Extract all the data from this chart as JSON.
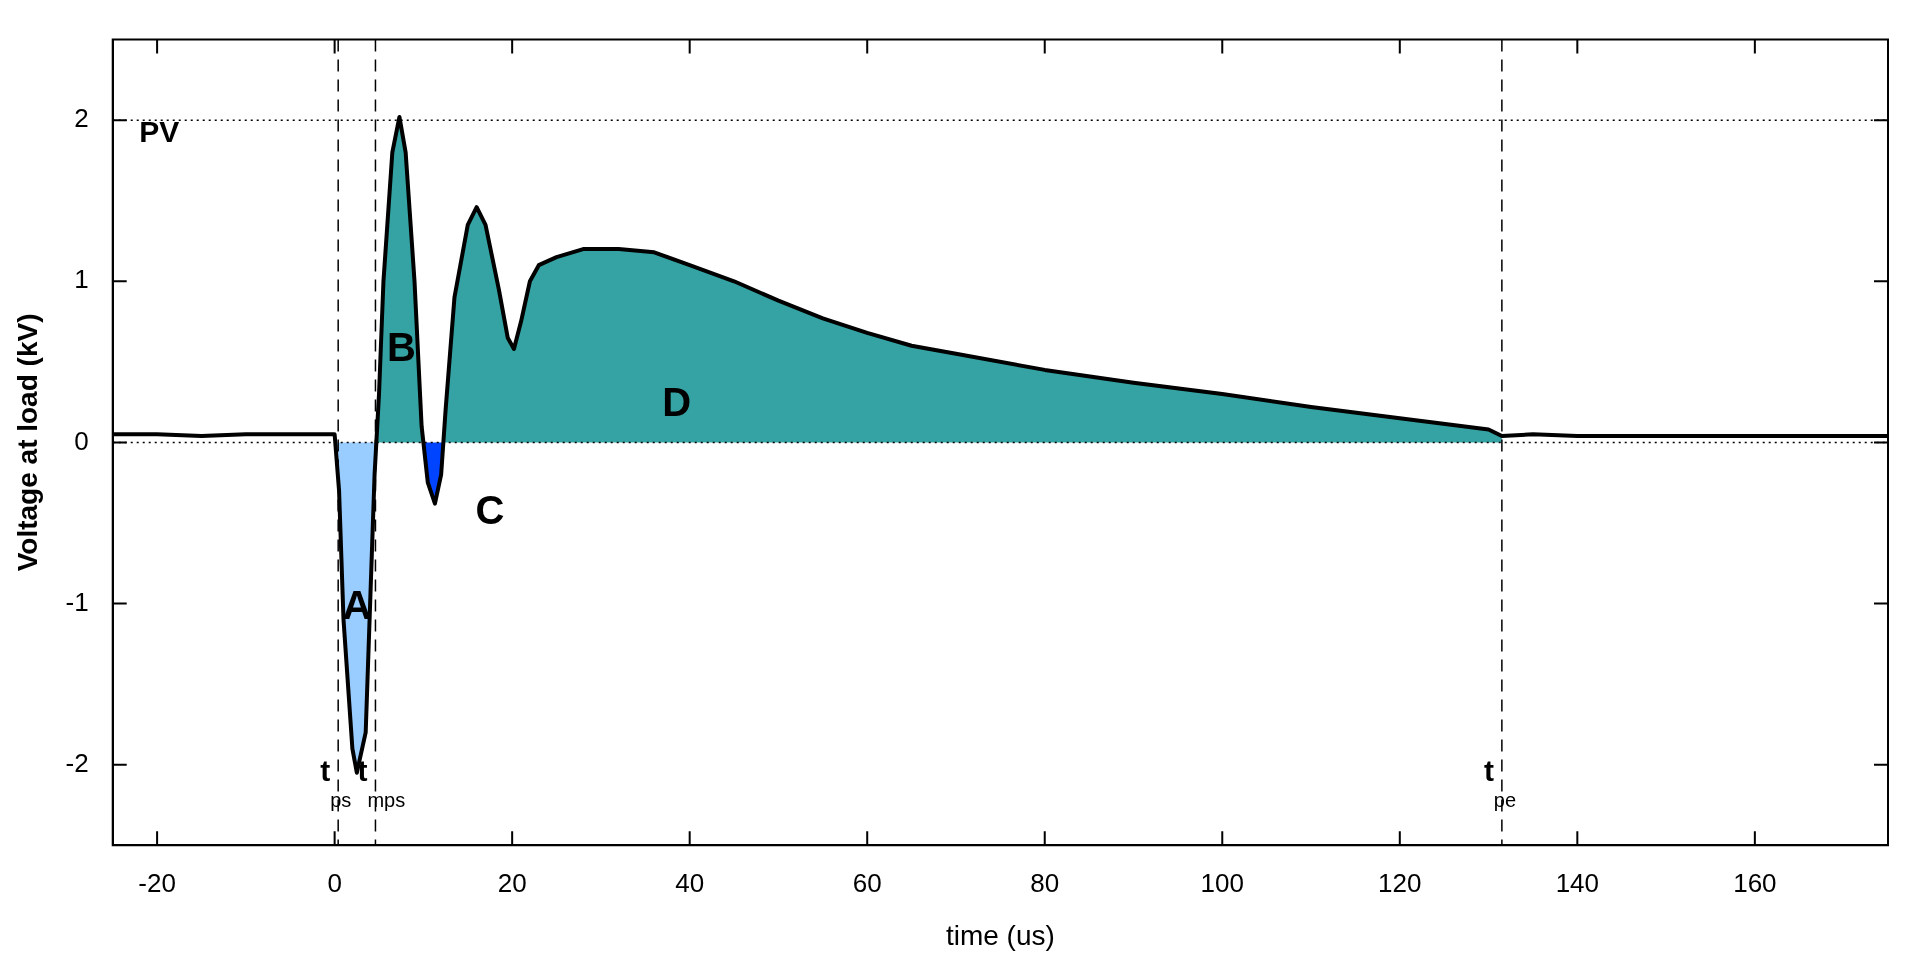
{
  "chart_data": {
    "type": "line",
    "xlabel": "time (us)",
    "ylabel": "Voltage at load (kV)",
    "xlim": [
      -25,
      175
    ],
    "ylim": [
      -2.5,
      2.5
    ],
    "xticks": [
      -20,
      0,
      20,
      40,
      60,
      80,
      100,
      120,
      140,
      160
    ],
    "yticks": [
      -2,
      -1,
      0,
      1,
      2
    ],
    "marker": "none",
    "series": [
      {
        "type": "line",
        "color": "#000000",
        "x": [
          -25,
          -20,
          -15,
          -10,
          -5,
          0,
          0.5,
          1,
          2,
          2.5,
          3.5,
          4,
          4.5,
          5,
          5.5,
          6.5,
          7.3,
          8,
          9,
          9.8,
          10.5,
          11.3,
          12,
          12.5,
          13.5,
          15,
          16,
          17,
          18.5,
          19.5,
          20.2,
          21,
          22,
          23,
          25,
          28,
          32,
          36,
          40,
          45,
          50,
          55,
          60,
          65,
          70,
          80,
          90,
          100,
          110,
          120,
          130,
          131.5,
          135,
          140,
          150,
          160,
          175
        ],
        "values": [
          0.05,
          0.05,
          0.04,
          0.05,
          0.05,
          0.05,
          -0.3,
          -1.1,
          -1.9,
          -2.05,
          -1.8,
          -1,
          -0.2,
          0.3,
          1,
          1.8,
          2.02,
          1.8,
          1,
          0.1,
          -0.25,
          -0.38,
          -0.2,
          0.2,
          0.9,
          1.35,
          1.46,
          1.35,
          0.95,
          0.65,
          0.58,
          0.75,
          1,
          1.1,
          1.15,
          1.2,
          1.2,
          1.18,
          1.1,
          1,
          0.88,
          0.77,
          0.68,
          0.6,
          0.55,
          0.45,
          0.37,
          0.3,
          0.22,
          0.15,
          0.08,
          0.04,
          0.05,
          0.04,
          0.04,
          0.04,
          0.04
        ]
      },
      {
        "type": "area",
        "color": "#99ccff",
        "x": [
          0,
          0.5,
          1,
          2,
          2.5,
          3.5,
          4,
          4.5,
          4.8
        ],
        "values": [
          0,
          -0.3,
          -1.1,
          -1.9,
          -2.05,
          -1.8,
          -1,
          -0.2,
          0
        ]
      },
      {
        "type": "area",
        "color": "#35a3a3",
        "x": [
          4.8,
          5,
          5.5,
          6.5,
          7.3,
          8,
          9,
          9.8,
          9.9
        ],
        "values": [
          0,
          0.3,
          1,
          1.8,
          2.02,
          1.8,
          1,
          0.1,
          0
        ]
      },
      {
        "type": "area",
        "color": "#0044ff",
        "x": [
          9.9,
          10.5,
          11.3,
          12,
          12.3
        ],
        "values": [
          0,
          -0.25,
          -0.38,
          -0.2,
          0
        ]
      },
      {
        "type": "area",
        "color": "#35a3a3",
        "x": [
          12.3,
          12.5,
          13.5,
          15,
          16,
          17,
          18.5,
          19.5,
          20.2,
          21,
          22,
          23,
          25,
          28,
          32,
          36,
          40,
          45,
          50,
          55,
          60,
          65,
          70,
          80,
          90,
          100,
          110,
          120,
          130,
          131.5
        ],
        "values": [
          0,
          0.2,
          0.9,
          1.35,
          1.46,
          1.35,
          0.95,
          0.65,
          0.58,
          0.75,
          1,
          1.1,
          1.15,
          1.2,
          1.2,
          1.18,
          1.1,
          1,
          0.88,
          0.77,
          0.68,
          0.6,
          0.55,
          0.45,
          0.37,
          0.3,
          0.22,
          0.15,
          0.08,
          0.04
        ]
      }
    ],
    "ref_lines": [
      {
        "axis": "y",
        "value": 2,
        "label": "PV",
        "line_style": "dotted",
        "color": "#000000"
      },
      {
        "axis": "y",
        "value": 0,
        "line_style": "dotted",
        "color": "#000000"
      },
      {
        "axis": "x",
        "value": 0.4,
        "label": "t$_{ps}$",
        "line_style": "dashed",
        "color": "#000000"
      },
      {
        "axis": "x",
        "value": 4.6,
        "label": "t$_{mps}$",
        "line_style": "dashed",
        "color": "#000000"
      },
      {
        "axis": "x",
        "value": 131.5,
        "label": "t$_{pe}$",
        "line_style": "dashed",
        "color": "#000000"
      }
    ],
    "annotations": [
      "A",
      "B",
      "C",
      "D"
    ]
  }
}
